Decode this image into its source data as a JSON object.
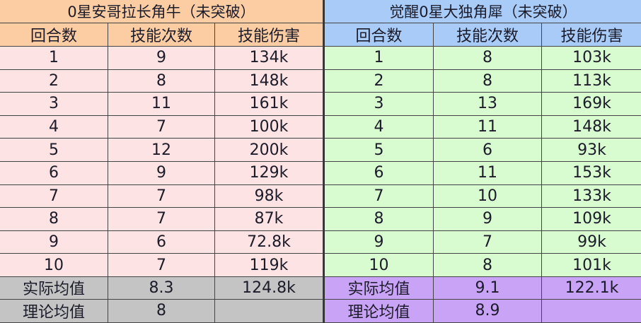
{
  "colors": {
    "left_header": "#fccca2",
    "left_rows": "#fde3e3",
    "left_summary": "#c4c4c4",
    "right_header": "#a9cbf7",
    "right_rows": "#d8fbd0",
    "right_summary": "#c9a3f5"
  },
  "tables": [
    {
      "title": "0星安哥拉长角牛（未突破）",
      "columns": [
        "回合数",
        "技能次数",
        "技能伤害"
      ],
      "rows": [
        [
          "1",
          "9",
          "134k"
        ],
        [
          "2",
          "8",
          "148k"
        ],
        [
          "3",
          "11",
          "161k"
        ],
        [
          "4",
          "7",
          "100k"
        ],
        [
          "5",
          "12",
          "200k"
        ],
        [
          "6",
          "9",
          "129k"
        ],
        [
          "7",
          "7",
          "98k"
        ],
        [
          "8",
          "7",
          "87k"
        ],
        [
          "9",
          "6",
          "72.8k"
        ],
        [
          "10",
          "7",
          "119k"
        ]
      ],
      "summary": [
        [
          "实际均值",
          "8.3",
          "124.8k"
        ],
        [
          "理论均值",
          "8",
          ""
        ]
      ]
    },
    {
      "title": "觉醒0星大独角犀（未突破）",
      "columns": [
        "回合数",
        "技能次数",
        "技能伤害"
      ],
      "rows": [
        [
          "1",
          "8",
          "103k"
        ],
        [
          "2",
          "8",
          "113k"
        ],
        [
          "3",
          "13",
          "169k"
        ],
        [
          "4",
          "11",
          "148k"
        ],
        [
          "5",
          "6",
          "93k"
        ],
        [
          "6",
          "11",
          "153k"
        ],
        [
          "7",
          "10",
          "133k"
        ],
        [
          "8",
          "9",
          "109k"
        ],
        [
          "9",
          "7",
          "99k"
        ],
        [
          "10",
          "8",
          "101k"
        ]
      ],
      "summary": [
        [
          "实际均值",
          "9.1",
          "122.1k"
        ],
        [
          "理论均值",
          "8.9",
          ""
        ]
      ]
    }
  ]
}
